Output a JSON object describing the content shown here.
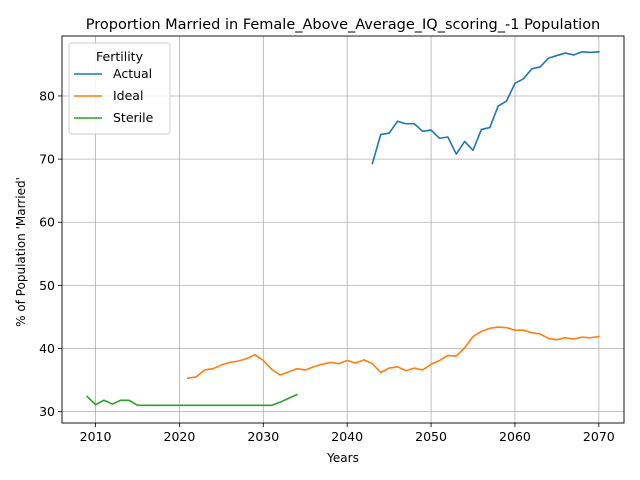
{
  "chart_data": {
    "type": "line",
    "title": "Proportion Married in Female_Above_Average_IQ_scoring_-1 Population",
    "xlabel": "Years",
    "ylabel": "% of Population 'Married'",
    "xlim": [
      2006,
      2073
    ],
    "ylim": [
      28.2,
      89.5
    ],
    "xticks": [
      2010,
      2020,
      2030,
      2040,
      2050,
      2060,
      2070
    ],
    "yticks": [
      30,
      40,
      50,
      60,
      70,
      80
    ],
    "grid": true,
    "legend": {
      "title": "Fertility",
      "placement": "top-left"
    },
    "series": [
      {
        "name": "Actual",
        "color": "#1f77b4",
        "x": [
          2043,
          2044,
          2045,
          2046,
          2047,
          2048,
          2049,
          2050,
          2051,
          2052,
          2053,
          2054,
          2055,
          2056,
          2057,
          2058,
          2059,
          2060,
          2061,
          2062,
          2063,
          2064,
          2065,
          2066,
          2067,
          2068,
          2069,
          2070
        ],
        "y": [
          69.3,
          73.9,
          74.1,
          76.0,
          75.6,
          75.6,
          74.4,
          74.6,
          73.3,
          73.5,
          70.8,
          72.8,
          71.4,
          74.7,
          75.0,
          78.4,
          79.2,
          82.0,
          82.7,
          84.3,
          84.6,
          86.0,
          86.4,
          86.8,
          86.5,
          87.0,
          86.9,
          87.0
        ]
      },
      {
        "name": "Ideal",
        "color": "#ff7f0e",
        "x": [
          2021,
          2022,
          2023,
          2024,
          2025,
          2026,
          2027,
          2028,
          2029,
          2030,
          2031,
          2032,
          2033,
          2034,
          2035,
          2036,
          2037,
          2038,
          2039,
          2040,
          2041,
          2042,
          2043,
          2044,
          2045,
          2046,
          2047,
          2048,
          2049,
          2050,
          2051,
          2052,
          2053,
          2054,
          2055,
          2056,
          2057,
          2058,
          2059,
          2060,
          2061,
          2062,
          2063,
          2064,
          2065,
          2066,
          2067,
          2068,
          2069,
          2070
        ],
        "y": [
          35.3,
          35.5,
          36.6,
          36.8,
          37.4,
          37.8,
          38.0,
          38.4,
          39.0,
          38.1,
          36.7,
          35.8,
          36.3,
          36.8,
          36.6,
          37.1,
          37.5,
          37.8,
          37.6,
          38.1,
          37.7,
          38.2,
          37.6,
          36.2,
          36.9,
          37.1,
          36.5,
          36.9,
          36.6,
          37.5,
          38.1,
          38.9,
          38.8,
          40.1,
          41.9,
          42.7,
          43.2,
          43.4,
          43.3,
          42.9,
          42.9,
          42.5,
          42.3,
          41.6,
          41.4,
          41.7,
          41.5,
          41.8,
          41.7,
          41.9
        ]
      },
      {
        "name": "Sterile",
        "color": "#2ca02c",
        "x": [
          2009,
          2010,
          2011,
          2012,
          2013,
          2014,
          2015,
          2016,
          2017,
          2018,
          2019,
          2020,
          2021,
          2022,
          2023,
          2024,
          2025,
          2026,
          2027,
          2028,
          2029,
          2030,
          2031,
          2032,
          2033,
          2034
        ],
        "y": [
          32.4,
          31.1,
          31.8,
          31.2,
          31.8,
          31.8,
          31.0,
          31.0,
          31.0,
          31.0,
          31.0,
          31.0,
          31.0,
          31.0,
          31.0,
          31.0,
          31.0,
          31.0,
          31.0,
          31.0,
          31.0,
          31.0,
          31.0,
          31.5,
          32.1,
          32.7
        ]
      }
    ]
  }
}
